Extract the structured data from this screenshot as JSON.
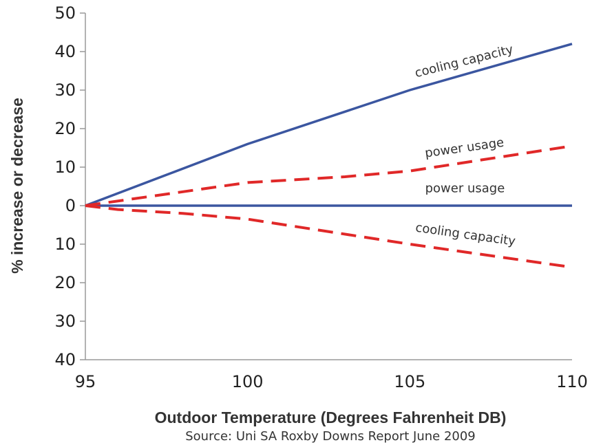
{
  "chart_data": {
    "type": "line",
    "xlabel": "Outdoor Temperature (Degrees Fahrenheit DB)",
    "ylabel": "% increase or decrease",
    "source": "Source: Uni SA Roxby Downs Report June 2009",
    "xlim": [
      95,
      110
    ],
    "ylim": [
      -40,
      50
    ],
    "x_ticks": [
      95,
      100,
      105,
      110
    ],
    "x_tick_labels": [
      "95",
      "100",
      "105",
      "110"
    ],
    "y_ticks": [
      50,
      40,
      30,
      20,
      10,
      0,
      -10,
      -20,
      -30,
      -40
    ],
    "y_tick_labels": [
      "50",
      "40",
      "30",
      "20",
      "10",
      "0",
      "10",
      "20",
      "30",
      "40"
    ],
    "grid": "horizontal-ticks",
    "series": [
      {
        "color": "#3b56a0",
        "style": "solid",
        "x": [
          95,
          100,
          105,
          110
        ],
        "y": [
          0,
          16,
          30,
          42
        ]
      },
      {
        "color": "#3b56a0",
        "style": "solid",
        "x": [
          95,
          100,
          105,
          110
        ],
        "y": [
          0,
          0,
          0,
          0
        ]
      },
      {
        "color": "#e02828",
        "style": "dashed",
        "x": [
          95,
          100,
          103,
          105,
          110
        ],
        "y": [
          0,
          6,
          7.5,
          9,
          15.5
        ]
      },
      {
        "color": "#e02828",
        "style": "dashed",
        "x": [
          95,
          96,
          98,
          100,
          105,
          110
        ],
        "y": [
          0,
          -1,
          -2,
          -3.5,
          -10,
          -16
        ]
      }
    ],
    "annotations": [
      {
        "text": "cooling capacity",
        "x": 106.7,
        "y": 36.5,
        "angle": -14
      },
      {
        "text": "power usage",
        "x": 106.7,
        "y": 14,
        "angle": -8
      },
      {
        "text": "power usage",
        "x": 106.7,
        "y": 3.5,
        "angle": 0
      },
      {
        "text": "cooling capacity",
        "x": 106.7,
        "y": -8.5,
        "angle": 8
      }
    ]
  }
}
